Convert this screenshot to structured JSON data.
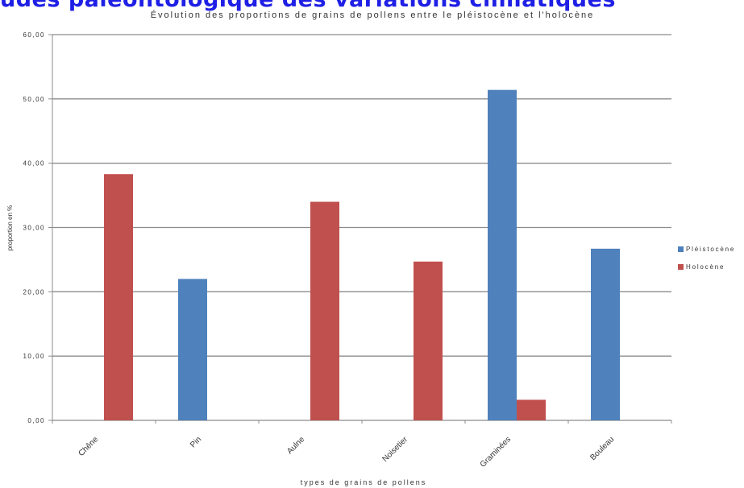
{
  "header": {
    "banner_text": "udes paléontologique des variations climatiques"
  },
  "chart_data": {
    "type": "bar",
    "title": "Évolution des proportions de grains de pollens entre le pléistocène et l'holocène",
    "xlabel": "types de grains de pollens",
    "ylabel": "proportion en %",
    "categories": [
      "Chêne",
      "Pin",
      "Aulne",
      "Noisetier",
      "Graminées",
      "Bouleau"
    ],
    "series": [
      {
        "name": "Pléistocène",
        "color": "#4f81bd",
        "values": [
          0,
          22,
          0,
          0,
          51.4,
          26.7
        ]
      },
      {
        "name": "Holocène",
        "color": "#c0504d",
        "values": [
          38.3,
          0,
          34.0,
          24.7,
          3.2,
          0
        ]
      }
    ],
    "ylim": [
      0,
      60
    ],
    "yticks": [
      "0,00",
      "10,00",
      "20,00",
      "30,00",
      "40,00",
      "50,00",
      "60,00"
    ],
    "grid": true,
    "legend_position": "right"
  }
}
